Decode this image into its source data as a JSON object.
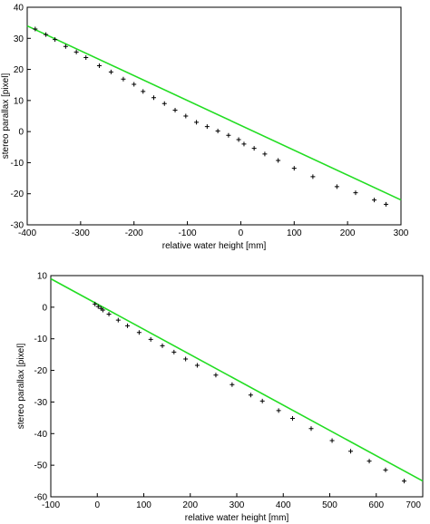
{
  "chart_data": [
    {
      "type": "scatter",
      "xlabel": "relative water height [mm]",
      "ylabel": "stereo parallax [pixel]",
      "xlim": [
        -400,
        300
      ],
      "ylim": [
        -30,
        40
      ],
      "xticks": [
        "-400",
        "-300",
        "-200",
        "-100",
        "0",
        "100",
        "200",
        "300"
      ],
      "yticks": [
        "-30",
        "-20",
        "-10",
        "0",
        "10",
        "20",
        "30",
        "40"
      ],
      "fit_line": {
        "x": [
          -400,
          300
        ],
        "y": [
          34.0,
          -22.0
        ],
        "color": "#22dd22"
      },
      "markers": {
        "x": [
          -385,
          -365,
          -348,
          -328,
          -308,
          -290,
          -265,
          -243,
          -220,
          -200,
          -183,
          -163,
          -143,
          -123,
          -103,
          -83,
          -63,
          -43,
          -23,
          -4,
          6,
          25,
          45,
          70,
          100,
          135,
          180,
          215,
          250,
          272
        ],
        "y": [
          33.0,
          31.2,
          29.6,
          27.4,
          25.6,
          23.8,
          21.2,
          19.2,
          16.9,
          15.2,
          12.9,
          10.9,
          9.0,
          6.9,
          5.0,
          3.0,
          1.6,
          0.2,
          -1.2,
          -2.6,
          -4.0,
          -5.4,
          -7.2,
          -9.3,
          -11.8,
          -14.5,
          -17.7,
          -19.7,
          -22.0,
          -23.4
        ]
      }
    },
    {
      "type": "scatter",
      "xlabel": "relative water height [mm]",
      "ylabel": "stereo parallax [pixel]",
      "xlim": [
        -100,
        700
      ],
      "ylim": [
        -60,
        10
      ],
      "xticks": [
        "-100",
        "0",
        "100",
        "200",
        "300",
        "400",
        "500",
        "600",
        "700"
      ],
      "yticks": [
        "-60",
        "-50",
        "-40",
        "-30",
        "-20",
        "-10",
        "0",
        "10"
      ],
      "fit_line": {
        "x": [
          -100,
          700
        ],
        "y": [
          9.0,
          -55.0
        ],
        "color": "#22dd22"
      },
      "markers": {
        "x": [
          -5,
          2,
          8,
          12,
          25,
          45,
          65,
          90,
          115,
          140,
          165,
          190,
          215,
          255,
          290,
          330,
          355,
          390,
          420,
          460,
          505,
          545,
          585,
          620,
          660
        ],
        "y": [
          1.0,
          0.2,
          -0.4,
          -0.9,
          -2.2,
          -4.1,
          -5.9,
          -8.0,
          -10.2,
          -12.2,
          -14.2,
          -16.4,
          -18.4,
          -21.5,
          -24.5,
          -27.8,
          -29.7,
          -32.7,
          -35.2,
          -38.4,
          -42.2,
          -45.6,
          -48.7,
          -51.5,
          -55.0
        ]
      }
    }
  ]
}
